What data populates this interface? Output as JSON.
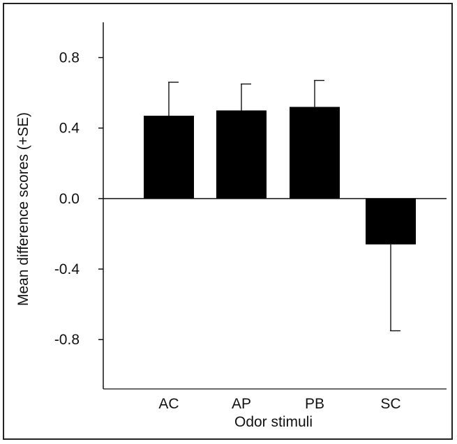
{
  "chart_data": {
    "type": "bar",
    "title": "",
    "xlabel": "Odor stimuli",
    "ylabel": "Mean difference scores (+SE)",
    "categories": [
      "AC",
      "AP",
      "PB",
      "SC"
    ],
    "values": [
      0.47,
      0.5,
      0.52,
      -0.26
    ],
    "se": [
      0.19,
      0.15,
      0.15,
      0.49
    ],
    "ylim": [
      -1.08,
      1.0
    ],
    "yticks": [
      0.8,
      0.4,
      0.0,
      -0.4,
      -0.8
    ],
    "ytick_labels": [
      "0.8",
      "0.4",
      "0.0",
      "-0.4",
      "-0.8"
    ],
    "grid": false,
    "bar_color": "#000000"
  }
}
